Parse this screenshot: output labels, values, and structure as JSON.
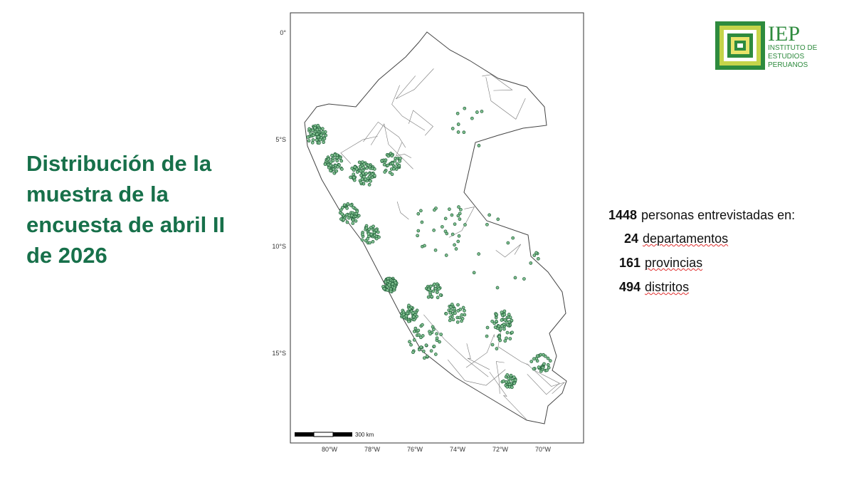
{
  "slide": {
    "title": "Distribución de la muestra de la encuesta de abril II de 2026",
    "logo": {
      "acronym": "IEP",
      "name_lines": [
        "INSTITUTO DE",
        "ESTUDIOS",
        "PERUANOS"
      ]
    },
    "map": {
      "lat_labels": [
        "0°",
        "5°S",
        "10°S",
        "15°S"
      ],
      "lon_labels": [
        "80°W",
        "78°W",
        "76°W",
        "74°W",
        "72°W",
        "70°W"
      ],
      "scale_label": "300 km"
    },
    "stats": [
      {
        "number": "1448",
        "label": "personas entrevistadas en:"
      },
      {
        "number": "24",
        "label": "departamentos"
      },
      {
        "number": "161",
        "label": "provincias"
      },
      {
        "number": "494",
        "label": "distritos"
      }
    ]
  }
}
